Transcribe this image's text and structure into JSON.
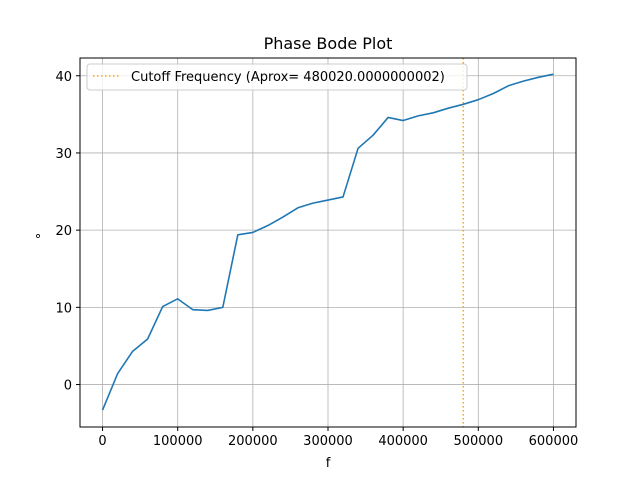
{
  "chart_data": {
    "type": "line",
    "title": "Phase Bode Plot",
    "xlabel": "f",
    "ylabel": "°",
    "xlim": [
      -30000,
      630000
    ],
    "ylim": [
      -5.5,
      42.3
    ],
    "x_ticks": [
      0,
      100000,
      200000,
      300000,
      400000,
      500000,
      600000
    ],
    "x_tick_labels": [
      "0",
      "100000",
      "200000",
      "300000",
      "400000",
      "500000",
      "600000"
    ],
    "y_ticks": [
      0,
      10,
      20,
      30,
      40
    ],
    "y_tick_labels": [
      "0",
      "10",
      "20",
      "30",
      "40"
    ],
    "grid": true,
    "legend_position": "top-left",
    "series": [
      {
        "color": "#1f77b4",
        "x": [
          0,
          20000,
          40000,
          60000,
          80000,
          100000,
          120000,
          140000,
          160000,
          180000,
          200000,
          220000,
          240000,
          260000,
          280000,
          300000,
          320000,
          340000,
          360000,
          380000,
          400000,
          420000,
          440000,
          460000,
          480000,
          500000,
          520000,
          540000,
          560000,
          580000,
          600000
        ],
        "y": [
          -3.3,
          1.4,
          4.3,
          5.9,
          10.1,
          11.1,
          9.7,
          9.6,
          10.0,
          19.4,
          19.7,
          20.6,
          21.7,
          22.9,
          23.5,
          23.9,
          24.3,
          30.6,
          32.3,
          34.6,
          34.2,
          34.8,
          35.2,
          35.8,
          36.3,
          36.9,
          37.7,
          38.7,
          39.3,
          39.8,
          40.2
        ]
      },
      {
        "name": "Cutoff Frequency (Aprox= 480020.0000000002)",
        "color": "#ffa500",
        "style": "dotted-vertical",
        "x": [
          480020.0000000002
        ]
      }
    ]
  }
}
